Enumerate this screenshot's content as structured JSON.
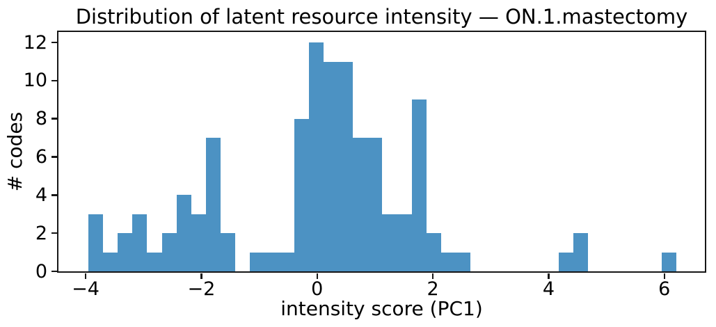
{
  "chart_data": {
    "type": "bar",
    "subtype": "histogram",
    "title": "Distribution of latent resource intensity — ON.1.mastectomy",
    "xlabel": "intensity score (PC1)",
    "ylabel": "# codes",
    "bin_start": -3.954,
    "bin_width": 0.254,
    "counts": [
      3,
      1,
      2,
      3,
      1,
      2,
      4,
      3,
      7,
      2,
      0,
      1,
      1,
      1,
      8,
      12,
      11,
      11,
      7,
      7,
      3,
      3,
      9,
      2,
      1,
      1,
      0,
      0,
      0,
      0,
      0,
      0,
      1,
      2,
      0,
      0,
      0,
      0,
      0,
      1
    ],
    "total_codes": 110,
    "xlim": [
      -4.47,
      6.7
    ],
    "ylim": [
      0,
      12.55
    ],
    "x_ticks": [
      {
        "v": -4,
        "label": "−4"
      },
      {
        "v": -2,
        "label": "−2"
      },
      {
        "v": 0,
        "label": "0"
      },
      {
        "v": 2,
        "label": "2"
      },
      {
        "v": 4,
        "label": "4"
      },
      {
        "v": 6,
        "label": "6"
      }
    ],
    "y_ticks": [
      {
        "v": 0,
        "label": "0"
      },
      {
        "v": 2,
        "label": "2"
      },
      {
        "v": 4,
        "label": "4"
      },
      {
        "v": 6,
        "label": "6"
      },
      {
        "v": 8,
        "label": "8"
      },
      {
        "v": 10,
        "label": "10"
      },
      {
        "v": 12,
        "label": "12"
      }
    ],
    "bar_color": "#4c92c3",
    "axis_color": "#161616",
    "text_color": "#000000",
    "background_color": "#ffffff",
    "grid": false,
    "legend_position": "none"
  }
}
